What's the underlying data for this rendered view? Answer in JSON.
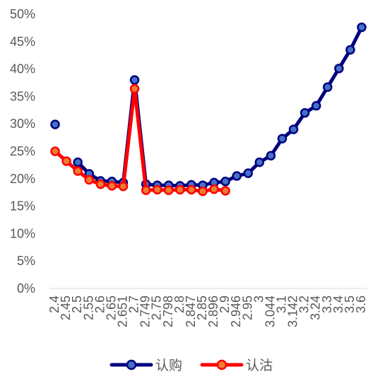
{
  "chart_data": {
    "type": "line",
    "title": "",
    "xlabel": "",
    "ylabel": "",
    "ylim": [
      0,
      0.5
    ],
    "y_ticks": [
      "0%",
      "5%",
      "10%",
      "15%",
      "20%",
      "25%",
      "30%",
      "35%",
      "40%",
      "45%",
      "50%"
    ],
    "grid": false,
    "legend_position": "bottom",
    "x": [
      "2.4",
      "2.45",
      "2.5",
      "2.55",
      "2.6",
      "2.65",
      "2.651",
      "2.7",
      "2.749",
      "2.75",
      "2.798",
      "2.8",
      "2.847",
      "2.85",
      "2.896",
      "2.9",
      "2.946",
      "2.95",
      "3",
      "3.044",
      "3.1",
      "3.142",
      "3.2",
      "3.24",
      "3.3",
      "3.4",
      "3.5",
      "3.6"
    ],
    "x_tick_labels": [
      "2.4",
      "2.45",
      "2.5",
      "2.55",
      "2.6",
      "2.65",
      "2.651",
      "2.7",
      "2.749",
      "2.75",
      "2.798",
      "2.8",
      "2.847",
      "2.85",
      "2.896",
      "2.9",
      "2.946",
      "2.95",
      "3",
      "3.044",
      "3.1",
      "3.142",
      "3.2",
      "3.24",
      "3.3",
      "3.4",
      "3.5",
      "3.6"
    ],
    "series": [
      {
        "name": "认购",
        "color": "#000080",
        "marker_fill": "#4472C4",
        "values": [
          0.299,
          null,
          0.23,
          0.209,
          0.196,
          0.195,
          0.193,
          0.38,
          0.19,
          0.188,
          0.188,
          0.187,
          0.189,
          0.188,
          0.193,
          0.195,
          0.205,
          0.21,
          0.23,
          0.242,
          0.273,
          0.29,
          0.32,
          0.333,
          0.367,
          0.401,
          0.435,
          0.476
        ]
      },
      {
        "name": "认沽",
        "color": "#FF0000",
        "marker_fill": "#ED7D31",
        "values": [
          0.25,
          0.232,
          0.214,
          0.198,
          0.19,
          0.187,
          0.186,
          0.364,
          0.179,
          0.18,
          0.179,
          0.18,
          0.18,
          0.177,
          0.181,
          0.178,
          null,
          null,
          null,
          null,
          null,
          null,
          null,
          null,
          null,
          null,
          null,
          null
        ]
      }
    ]
  }
}
